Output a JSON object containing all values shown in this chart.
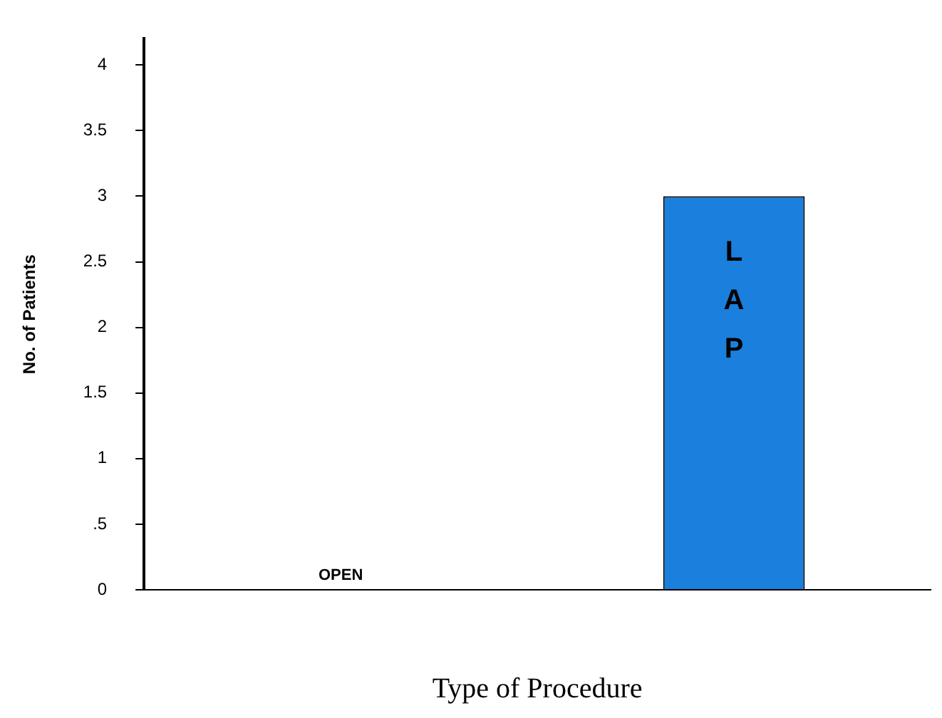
{
  "chart_data": {
    "type": "bar",
    "xlabel": "Type of Procedure",
    "ylabel": "No. of Patients",
    "categories": [
      "OPEN",
      "LAP"
    ],
    "values": [
      0,
      3
    ],
    "colors": [
      "#ffff00",
      "#1a7fdd"
    ],
    "ylim": [
      0,
      4.2
    ],
    "yticks": [
      0,
      {
        "value": 0.5,
        "label": ".5"
      },
      1,
      1.5,
      2,
      2.5,
      3,
      3.5,
      4
    ],
    "grid": false,
    "legend": false,
    "tick_labels": "y"
  }
}
